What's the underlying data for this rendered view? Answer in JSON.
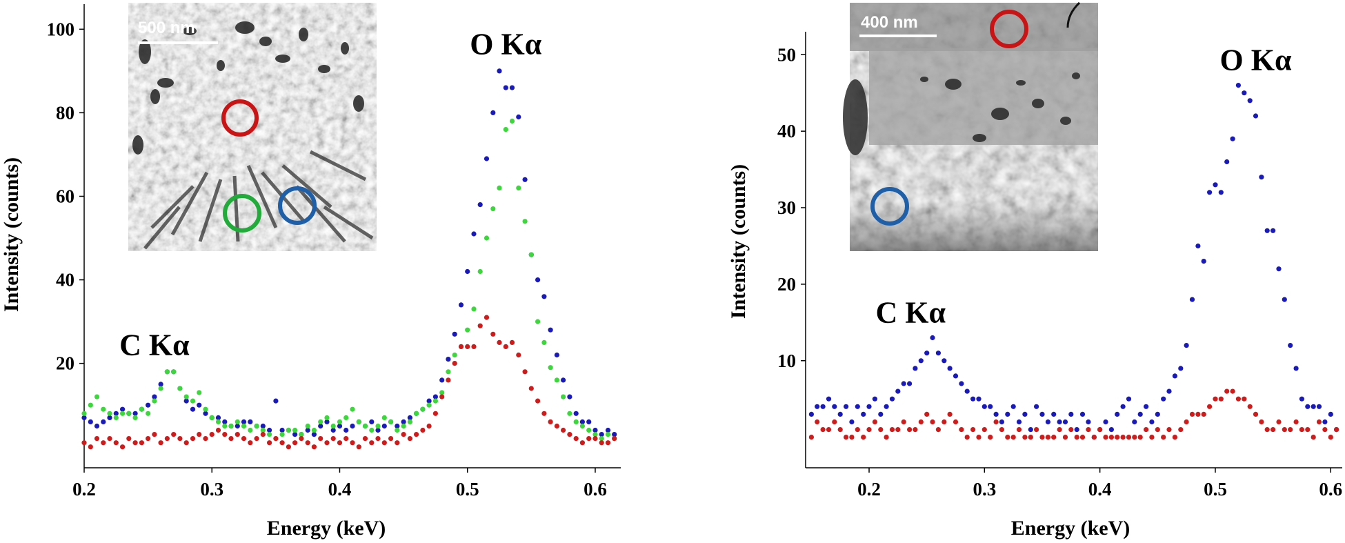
{
  "colors": {
    "blue": "#1a1ab8",
    "green": "#3dd63d",
    "red": "#cc1c1c",
    "ring_blue": "#1f5fa8",
    "ring_green": "#22aa3a",
    "ring_red": "#c81414"
  },
  "chart_data": [
    {
      "type": "scatter",
      "xlabel": "Energy (keV)",
      "ylabel": "Intensity (counts)",
      "xlim": [
        0.2,
        0.62
      ],
      "ylim": [
        -5,
        106
      ],
      "xticks": [
        "0.2",
        "0.3",
        "0.4",
        "0.5",
        "0.6"
      ],
      "yticks": [
        "20",
        "40",
        "60",
        "80",
        "100"
      ],
      "annotations": [
        {
          "text": "C Kα",
          "x": 0.255,
          "y": 22
        },
        {
          "text": "O Kα",
          "x": 0.53,
          "y": 94
        }
      ],
      "inset": {
        "scale_bar": "500 nm",
        "markers": [
          "red",
          "green",
          "blue"
        ]
      },
      "series": [
        {
          "color": "blue",
          "x": [
            0.2,
            0.205,
            0.21,
            0.215,
            0.22,
            0.225,
            0.23,
            0.235,
            0.24,
            0.245,
            0.25,
            0.255,
            0.26,
            0.265,
            0.27,
            0.275,
            0.28,
            0.285,
            0.29,
            0.295,
            0.3,
            0.305,
            0.31,
            0.315,
            0.32,
            0.325,
            0.33,
            0.335,
            0.34,
            0.345,
            0.35,
            0.355,
            0.36,
            0.365,
            0.37,
            0.375,
            0.38,
            0.385,
            0.39,
            0.395,
            0.4,
            0.405,
            0.41,
            0.415,
            0.42,
            0.425,
            0.43,
            0.435,
            0.44,
            0.445,
            0.45,
            0.455,
            0.46,
            0.465,
            0.47,
            0.475,
            0.48,
            0.485,
            0.49,
            0.495,
            0.5,
            0.505,
            0.51,
            0.515,
            0.52,
            0.525,
            0.53,
            0.535,
            0.54,
            0.545,
            0.55,
            0.555,
            0.56,
            0.565,
            0.57,
            0.575,
            0.58,
            0.585,
            0.59,
            0.595,
            0.6,
            0.605,
            0.61,
            0.615
          ],
          "y": [
            7,
            6,
            5,
            6,
            7,
            8,
            9,
            8,
            8,
            9,
            10,
            12,
            15,
            18,
            18,
            14,
            11,
            9,
            10,
            8,
            7,
            7,
            6,
            5,
            5,
            6,
            6,
            5,
            5,
            4,
            11,
            4,
            4,
            3,
            3,
            4,
            3,
            5,
            6,
            4,
            5,
            4,
            5,
            6,
            5,
            6,
            4,
            5,
            6,
            5,
            6,
            7,
            8,
            9,
            11,
            12,
            16,
            21,
            27,
            34,
            42,
            51,
            58,
            69,
            80,
            90,
            86,
            86,
            79,
            64,
            46,
            40,
            36,
            28,
            22,
            16,
            12,
            8,
            6,
            6,
            4,
            3,
            4,
            3
          ]
        },
        {
          "color": "green",
          "x": [
            0.2,
            0.205,
            0.21,
            0.215,
            0.22,
            0.225,
            0.23,
            0.235,
            0.24,
            0.245,
            0.25,
            0.255,
            0.26,
            0.265,
            0.27,
            0.275,
            0.28,
            0.285,
            0.29,
            0.295,
            0.3,
            0.305,
            0.31,
            0.315,
            0.32,
            0.325,
            0.33,
            0.335,
            0.34,
            0.345,
            0.35,
            0.355,
            0.36,
            0.365,
            0.37,
            0.375,
            0.38,
            0.385,
            0.39,
            0.395,
            0.4,
            0.405,
            0.41,
            0.415,
            0.42,
            0.425,
            0.43,
            0.435,
            0.44,
            0.445,
            0.45,
            0.455,
            0.46,
            0.465,
            0.47,
            0.475,
            0.48,
            0.485,
            0.49,
            0.495,
            0.5,
            0.505,
            0.51,
            0.515,
            0.52,
            0.525,
            0.53,
            0.535,
            0.54,
            0.545,
            0.55,
            0.555,
            0.56,
            0.565,
            0.57,
            0.575,
            0.58,
            0.585,
            0.59,
            0.595,
            0.6,
            0.605,
            0.61,
            0.615
          ],
          "y": [
            8,
            10,
            12,
            9,
            8,
            7,
            8,
            8,
            7,
            9,
            8,
            11,
            14,
            18,
            18,
            14,
            12,
            11,
            13,
            9,
            7,
            6,
            5,
            5,
            6,
            5,
            4,
            5,
            4,
            3,
            2,
            3,
            4,
            4,
            3,
            5,
            4,
            6,
            7,
            5,
            6,
            7,
            9,
            6,
            5,
            4,
            5,
            7,
            6,
            4,
            5,
            6,
            8,
            9,
            10,
            11,
            13,
            18,
            22,
            24,
            28,
            33,
            42,
            50,
            57,
            62,
            76,
            78,
            62,
            54,
            46,
            30,
            25,
            19,
            16,
            12,
            8,
            6,
            5,
            4,
            3,
            2,
            3,
            2
          ]
        },
        {
          "color": "red",
          "x": [
            0.2,
            0.205,
            0.21,
            0.215,
            0.22,
            0.225,
            0.23,
            0.235,
            0.24,
            0.245,
            0.25,
            0.255,
            0.26,
            0.265,
            0.27,
            0.275,
            0.28,
            0.285,
            0.29,
            0.295,
            0.3,
            0.305,
            0.31,
            0.315,
            0.32,
            0.325,
            0.33,
            0.335,
            0.34,
            0.345,
            0.35,
            0.355,
            0.36,
            0.365,
            0.37,
            0.375,
            0.38,
            0.385,
            0.39,
            0.395,
            0.4,
            0.405,
            0.41,
            0.415,
            0.42,
            0.425,
            0.43,
            0.435,
            0.44,
            0.445,
            0.45,
            0.455,
            0.46,
            0.465,
            0.47,
            0.475,
            0.48,
            0.485,
            0.49,
            0.495,
            0.5,
            0.505,
            0.51,
            0.515,
            0.52,
            0.525,
            0.53,
            0.535,
            0.54,
            0.545,
            0.55,
            0.555,
            0.56,
            0.565,
            0.57,
            0.575,
            0.58,
            0.585,
            0.59,
            0.595,
            0.6,
            0.605,
            0.61,
            0.615
          ],
          "y": [
            1,
            0,
            2,
            1,
            2,
            1,
            0,
            2,
            1,
            1,
            2,
            3,
            1,
            2,
            3,
            2,
            1,
            2,
            3,
            2,
            3,
            4,
            3,
            2,
            3,
            2,
            1,
            2,
            3,
            1,
            2,
            1,
            0,
            1,
            2,
            1,
            0,
            2,
            1,
            2,
            1,
            2,
            1,
            0,
            2,
            1,
            2,
            1,
            2,
            1,
            3,
            2,
            3,
            4,
            5,
            8,
            12,
            16,
            20,
            24,
            24,
            24,
            29,
            31,
            27,
            25,
            24,
            25,
            22,
            18,
            14,
            11,
            8,
            6,
            5,
            4,
            3,
            2,
            1,
            2,
            2,
            1,
            1,
            2
          ]
        }
      ]
    },
    {
      "type": "scatter",
      "xlabel": "Energy (keV)",
      "ylabel": "Intensity (counts)",
      "xlim": [
        0.145,
        0.61
      ],
      "ylim": [
        -4,
        53
      ],
      "xticks": [
        "0.2",
        "0.3",
        "0.4",
        "0.5",
        "0.6"
      ],
      "yticks": [
        "10",
        "20",
        "30",
        "40",
        "50"
      ],
      "annotations": [
        {
          "text": "C Kα",
          "x": 0.236,
          "y": 15
        },
        {
          "text": "O Kα",
          "x": 0.535,
          "y": 48
        }
      ],
      "inset": {
        "scale_bar": "400 nm",
        "markers": [
          "red",
          "blue"
        ]
      },
      "series": [
        {
          "color": "blue",
          "x": [
            0.15,
            0.155,
            0.16,
            0.165,
            0.17,
            0.175,
            0.18,
            0.185,
            0.19,
            0.195,
            0.2,
            0.205,
            0.21,
            0.215,
            0.22,
            0.225,
            0.23,
            0.235,
            0.24,
            0.245,
            0.25,
            0.255,
            0.26,
            0.265,
            0.27,
            0.275,
            0.28,
            0.285,
            0.29,
            0.295,
            0.3,
            0.305,
            0.31,
            0.315,
            0.32,
            0.325,
            0.33,
            0.335,
            0.34,
            0.345,
            0.35,
            0.355,
            0.36,
            0.365,
            0.37,
            0.375,
            0.38,
            0.385,
            0.39,
            0.395,
            0.4,
            0.405,
            0.41,
            0.415,
            0.42,
            0.425,
            0.43,
            0.435,
            0.44,
            0.445,
            0.45,
            0.455,
            0.46,
            0.465,
            0.47,
            0.475,
            0.48,
            0.485,
            0.49,
            0.495,
            0.5,
            0.505,
            0.51,
            0.515,
            0.52,
            0.525,
            0.53,
            0.535,
            0.54,
            0.545,
            0.55,
            0.555,
            0.56,
            0.565,
            0.57,
            0.575,
            0.58,
            0.585,
            0.59,
            0.595,
            0.6,
            0.605
          ],
          "y": [
            3,
            4,
            4,
            5,
            4,
            3,
            4,
            2,
            4,
            3,
            4,
            5,
            3,
            4,
            5,
            6,
            7,
            7,
            9,
            10,
            11,
            13,
            11,
            10,
            9,
            8,
            7,
            6,
            5,
            5,
            4,
            4,
            3,
            2,
            3,
            4,
            2,
            3,
            1,
            4,
            3,
            2,
            3,
            2,
            2,
            3,
            1,
            3,
            2,
            0,
            1,
            2,
            1,
            3,
            4,
            5,
            2,
            3,
            4,
            2,
            3,
            5,
            6,
            8,
            9,
            12,
            18,
            25,
            23,
            32,
            33,
            32,
            36,
            39,
            46,
            45,
            44,
            42,
            34,
            27,
            27,
            22,
            18,
            12,
            9,
            5,
            4,
            4,
            4,
            2,
            3,
            1
          ]
        },
        {
          "color": "red",
          "x": [
            0.15,
            0.155,
            0.16,
            0.165,
            0.17,
            0.175,
            0.18,
            0.185,
            0.19,
            0.195,
            0.2,
            0.205,
            0.21,
            0.215,
            0.22,
            0.225,
            0.23,
            0.235,
            0.24,
            0.245,
            0.25,
            0.255,
            0.26,
            0.265,
            0.27,
            0.275,
            0.28,
            0.285,
            0.29,
            0.295,
            0.3,
            0.305,
            0.31,
            0.315,
            0.32,
            0.325,
            0.33,
            0.335,
            0.34,
            0.345,
            0.35,
            0.355,
            0.36,
            0.365,
            0.37,
            0.375,
            0.38,
            0.385,
            0.39,
            0.395,
            0.4,
            0.405,
            0.41,
            0.415,
            0.42,
            0.425,
            0.43,
            0.435,
            0.44,
            0.445,
            0.45,
            0.455,
            0.46,
            0.465,
            0.47,
            0.475,
            0.48,
            0.485,
            0.49,
            0.495,
            0.5,
            0.505,
            0.51,
            0.515,
            0.52,
            0.525,
            0.53,
            0.535,
            0.54,
            0.545,
            0.55,
            0.555,
            0.56,
            0.565,
            0.57,
            0.575,
            0.58,
            0.585,
            0.59,
            0.595,
            0.6,
            0.605
          ],
          "y": [
            0,
            2,
            1,
            1,
            2,
            1,
            0,
            0,
            1,
            0,
            1,
            2,
            1,
            0,
            1,
            1,
            2,
            1,
            1,
            2,
            3,
            2,
            1,
            2,
            3,
            2,
            1,
            0,
            1,
            0,
            1,
            0,
            2,
            1,
            0,
            0,
            1,
            0,
            0,
            1,
            0,
            0,
            0,
            1,
            0,
            1,
            0,
            0,
            1,
            0,
            1,
            0,
            0,
            0,
            0,
            0,
            0,
            0,
            1,
            0,
            1,
            0,
            1,
            0,
            1,
            2,
            3,
            3,
            3,
            4,
            5,
            5,
            6,
            6,
            5,
            5,
            4,
            3,
            2,
            1,
            1,
            2,
            1,
            1,
            2,
            1,
            1,
            0,
            2,
            1,
            0,
            1
          ]
        }
      ]
    }
  ]
}
